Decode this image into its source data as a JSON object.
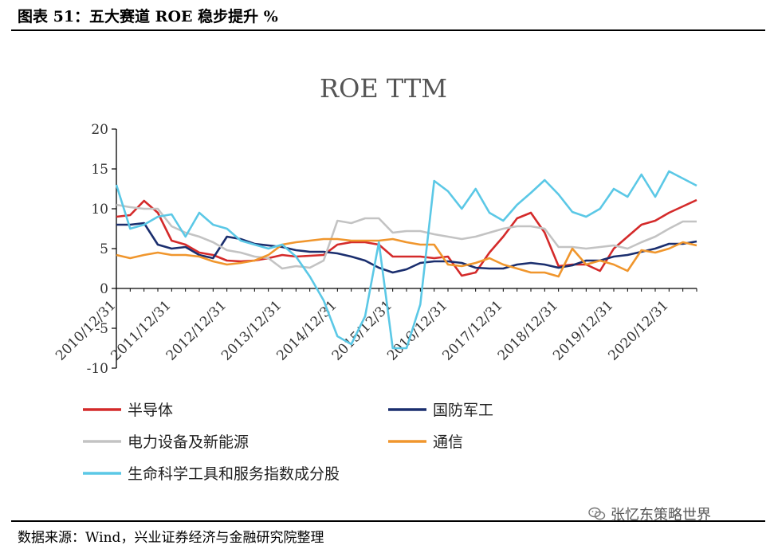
{
  "figure": {
    "title": "图表 51：五大赛道 ROE 稳步提升 %",
    "source": "数据来源：Wind，兴业证券经济与金融研究院整理",
    "watermark": "张忆东策略世界",
    "watermark_icon": "wechat-icon"
  },
  "chart_data": {
    "type": "line",
    "title": "ROE TTM",
    "xlabel": "",
    "ylabel": "",
    "ylim": [
      -10,
      20
    ],
    "yticks": [
      -10,
      -5,
      0,
      5,
      10,
      15,
      20
    ],
    "xtick_labels": [
      "2010/12/31",
      "2011/12/31",
      "2012/12/31",
      "2013/12/31",
      "2014/12/31",
      "2015/12/31",
      "2016/12/31",
      "2017/12/31",
      "2018/12/31",
      "2019/12/31",
      "2020/12/31"
    ],
    "x_start": "2010/12/31",
    "x_step": "quarter",
    "grid": false,
    "legend_position": "bottom",
    "series": [
      {
        "name": "半导体",
        "color": "#d42a2a",
        "values": [
          9.0,
          9.2,
          11.0,
          9.5,
          6.0,
          5.5,
          4.5,
          4.2,
          3.5,
          3.4,
          3.5,
          3.8,
          4.2,
          4.0,
          4.1,
          4.2,
          5.5,
          5.8,
          5.8,
          5.5,
          4.0,
          4.0,
          4.0,
          3.8,
          4.0,
          1.6,
          2.0,
          4.5,
          6.5,
          8.8,
          9.5,
          7.0,
          2.8,
          3.0,
          3.0,
          2.2,
          5.0,
          6.5,
          8.0,
          8.5,
          9.5,
          10.3,
          11.1
        ]
      },
      {
        "name": "国防军工",
        "color": "#1a2e6e",
        "values": [
          8.0,
          8.0,
          8.2,
          5.5,
          5.0,
          5.2,
          4.2,
          3.8,
          6.5,
          6.2,
          5.6,
          5.4,
          5.2,
          4.8,
          4.6,
          4.6,
          4.4,
          4.0,
          3.5,
          2.6,
          2.0,
          2.4,
          3.2,
          3.4,
          3.4,
          3.2,
          2.6,
          2.5,
          2.5,
          3.0,
          3.2,
          3.0,
          2.6,
          2.9,
          3.5,
          3.5,
          4.0,
          4.2,
          4.6,
          5.0,
          5.6,
          5.6,
          5.9
        ]
      },
      {
        "name": "电力设备及新能源",
        "color": "#c3c3c3",
        "values": [
          10.5,
          10.2,
          10.0,
          10.0,
          7.8,
          7.0,
          6.5,
          5.8,
          4.8,
          4.5,
          4.0,
          3.8,
          2.5,
          2.8,
          2.6,
          3.5,
          8.5,
          8.2,
          8.8,
          8.8,
          7.0,
          7.2,
          7.2,
          6.8,
          6.5,
          6.2,
          6.5,
          7.0,
          7.5,
          7.8,
          7.8,
          7.5,
          5.2,
          5.2,
          5.0,
          5.2,
          5.4,
          5.0,
          5.8,
          6.5,
          7.5,
          8.4,
          8.4
        ]
      },
      {
        "name": "通信",
        "color": "#f0962d",
        "values": [
          4.2,
          3.8,
          4.2,
          4.5,
          4.2,
          4.2,
          4.0,
          3.4,
          3.0,
          3.2,
          3.5,
          4.2,
          5.5,
          5.8,
          6.0,
          6.2,
          6.2,
          6.0,
          6.0,
          6.0,
          6.2,
          5.8,
          5.5,
          5.5,
          3.0,
          2.8,
          3.2,
          3.8,
          3.0,
          2.5,
          2.0,
          2.0,
          1.5,
          5.0,
          3.0,
          3.5,
          3.0,
          2.2,
          4.8,
          4.5,
          5.0,
          5.8,
          5.4
        ]
      },
      {
        "name": "生命科学工具和服务指数成分股",
        "color": "#5bc8e6",
        "values": [
          13.0,
          7.5,
          8.0,
          9.0,
          9.3,
          6.5,
          9.5,
          8.0,
          7.5,
          6.0,
          5.5,
          5.0,
          5.5,
          4.0,
          1.5,
          -1.5,
          -6.0,
          -7.0,
          -3.5,
          5.8,
          -7.5,
          -7.5,
          -2.0,
          13.5,
          12.2,
          10.0,
          12.5,
          9.5,
          8.5,
          10.5,
          12.0,
          13.6,
          11.8,
          9.6,
          9.0,
          10.0,
          12.5,
          11.5,
          14.3,
          11.5,
          14.7,
          13.8,
          12.9
        ]
      }
    ]
  }
}
